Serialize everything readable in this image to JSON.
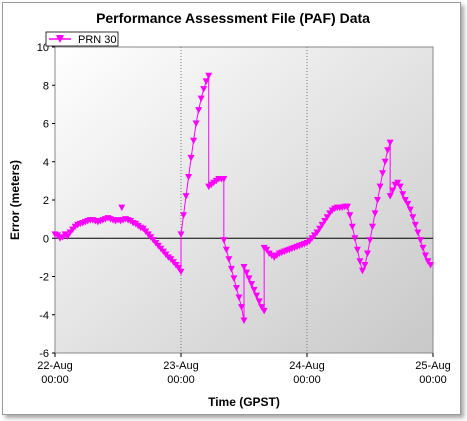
{
  "chart_data": {
    "type": "scatter",
    "title": "Performance Assessment File (PAF) Data",
    "xlabel": "Time (GPST)",
    "ylabel": "Error (meters)",
    "ylim": [
      -6,
      10
    ],
    "yticks": [
      -6,
      -4,
      -2,
      0,
      2,
      4,
      6,
      8,
      10
    ],
    "xlim": [
      0,
      3
    ],
    "xticks": [
      {
        "value": 0,
        "line1": "22-Aug",
        "line2": "00:00"
      },
      {
        "value": 1,
        "line1": "23-Aug",
        "line2": "00:00"
      },
      {
        "value": 2,
        "line1": "24-Aug",
        "line2": "00:00"
      },
      {
        "value": 3,
        "line1": "25-Aug",
        "line2": "00:00"
      }
    ],
    "x_unit": "days since 22-Aug 00:00",
    "legend_position": "top-left",
    "grid": {
      "x": "dotted",
      "y": "none"
    },
    "zero_line": true,
    "series": [
      {
        "name": "PRN 30",
        "color": "#ff00ff",
        "marker": "triangle-down",
        "segments": [
          [
            [
              0.0,
              0.2
            ],
            [
              0.02,
              0.15
            ],
            [
              0.04,
              0.0
            ],
            [
              0.06,
              0.05
            ],
            [
              0.08,
              0.2
            ],
            [
              0.1,
              0.1
            ],
            [
              0.12,
              0.3
            ],
            [
              0.14,
              0.45
            ],
            [
              0.16,
              0.6
            ],
            [
              0.18,
              0.7
            ],
            [
              0.2,
              0.75
            ],
            [
              0.22,
              0.8
            ],
            [
              0.24,
              0.85
            ],
            [
              0.26,
              0.9
            ],
            [
              0.28,
              0.95
            ],
            [
              0.3,
              0.95
            ],
            [
              0.32,
              0.9
            ],
            [
              0.34,
              0.85
            ],
            [
              0.36,
              0.9
            ],
            [
              0.38,
              0.95
            ],
            [
              0.4,
              1.0
            ],
            [
              0.42,
              1.05
            ],
            [
              0.44,
              1.0
            ],
            [
              0.46,
              0.95
            ],
            [
              0.48,
              0.9
            ],
            [
              0.5,
              0.95
            ],
            [
              0.52,
              0.9
            ],
            [
              0.54,
              0.95
            ],
            [
              0.56,
              1.0
            ],
            [
              0.58,
              0.95
            ],
            [
              0.6,
              0.9
            ],
            [
              0.62,
              0.8
            ],
            [
              0.64,
              0.75
            ],
            [
              0.66,
              0.65
            ],
            [
              0.68,
              0.55
            ],
            [
              0.7,
              0.5
            ],
            [
              0.72,
              0.35
            ],
            [
              0.74,
              0.2
            ],
            [
              0.76,
              0.05
            ],
            [
              0.78,
              -0.1
            ],
            [
              0.8,
              -0.25
            ],
            [
              0.82,
              -0.4
            ],
            [
              0.84,
              -0.55
            ],
            [
              0.86,
              -0.7
            ],
            [
              0.88,
              -0.85
            ],
            [
              0.9,
              -1.0
            ],
            [
              0.92,
              -1.1
            ],
            [
              0.94,
              -1.25
            ],
            [
              0.96,
              -1.4
            ],
            [
              0.98,
              -1.55
            ],
            [
              1.0,
              -1.75
            ]
          ],
          [
            [
              1.0,
              0.2
            ],
            [
              1.02,
              1.2
            ],
            [
              1.04,
              2.2
            ],
            [
              1.06,
              3.2
            ],
            [
              1.08,
              4.2
            ],
            [
              1.1,
              5.1
            ],
            [
              1.12,
              6.0
            ],
            [
              1.14,
              6.7
            ],
            [
              1.16,
              7.3
            ],
            [
              1.18,
              7.8
            ],
            [
              1.2,
              8.2
            ],
            [
              1.22,
              8.5
            ]
          ],
          [
            [
              1.22,
              2.7
            ],
            [
              1.24,
              2.8
            ],
            [
              1.26,
              2.9
            ],
            [
              1.28,
              3.0
            ],
            [
              1.3,
              3.1
            ],
            [
              1.32,
              3.1
            ],
            [
              1.34,
              3.1
            ]
          ],
          [
            [
              1.34,
              -0.1
            ],
            [
              1.36,
              -0.6
            ],
            [
              1.38,
              -1.1
            ],
            [
              1.4,
              -1.6
            ],
            [
              1.42,
              -2.1
            ],
            [
              1.44,
              -2.6
            ],
            [
              1.46,
              -3.1
            ],
            [
              1.48,
              -3.6
            ],
            [
              1.5,
              -4.3
            ]
          ],
          [
            [
              1.5,
              -1.5
            ],
            [
              1.52,
              -1.8
            ],
            [
              1.54,
              -2.1
            ],
            [
              1.56,
              -2.4
            ],
            [
              1.58,
              -2.7
            ],
            [
              1.6,
              -3.0
            ],
            [
              1.62,
              -3.3
            ],
            [
              1.64,
              -3.6
            ],
            [
              1.66,
              -3.8
            ]
          ],
          [
            [
              1.66,
              -0.5
            ],
            [
              1.68,
              -0.6
            ],
            [
              1.7,
              -0.8
            ],
            [
              1.72,
              -0.9
            ],
            [
              1.74,
              -1.0
            ],
            [
              1.76,
              -0.9
            ],
            [
              1.78,
              -0.8
            ],
            [
              1.8,
              -0.75
            ],
            [
              1.82,
              -0.7
            ],
            [
              1.84,
              -0.65
            ],
            [
              1.86,
              -0.6
            ],
            [
              1.88,
              -0.55
            ],
            [
              1.9,
              -0.5
            ],
            [
              1.92,
              -0.45
            ],
            [
              1.94,
              -0.4
            ],
            [
              1.96,
              -0.35
            ],
            [
              1.98,
              -0.3
            ],
            [
              2.0,
              -0.25
            ],
            [
              2.02,
              -0.15
            ],
            [
              2.04,
              0.0
            ],
            [
              2.06,
              0.15
            ],
            [
              2.08,
              0.3
            ],
            [
              2.1,
              0.5
            ],
            [
              2.12,
              0.7
            ],
            [
              2.14,
              0.9
            ],
            [
              2.16,
              1.1
            ],
            [
              2.18,
              1.3
            ],
            [
              2.2,
              1.45
            ],
            [
              2.22,
              1.55
            ],
            [
              2.24,
              1.6
            ],
            [
              2.26,
              1.6
            ],
            [
              2.28,
              1.6
            ],
            [
              2.3,
              1.65
            ],
            [
              2.32,
              1.65
            ]
          ],
          [
            [
              2.32,
              1.65
            ],
            [
              2.34,
              1.2
            ],
            [
              2.36,
              0.6
            ],
            [
              2.38,
              0.0
            ],
            [
              2.4,
              -0.6
            ],
            [
              2.42,
              -1.2
            ],
            [
              2.44,
              -1.7
            ],
            [
              2.46,
              -1.4
            ],
            [
              2.48,
              -0.8
            ],
            [
              2.5,
              -0.1
            ],
            [
              2.52,
              0.6
            ],
            [
              2.54,
              1.3
            ],
            [
              2.56,
              2.0
            ],
            [
              2.58,
              2.7
            ],
            [
              2.6,
              3.4
            ],
            [
              2.62,
              4.0
            ],
            [
              2.64,
              4.6
            ],
            [
              2.66,
              5.0
            ]
          ],
          [
            [
              2.66,
              2.2
            ],
            [
              2.68,
              2.5
            ],
            [
              2.7,
              2.8
            ],
            [
              2.72,
              2.9
            ],
            [
              2.74,
              2.7
            ],
            [
              2.76,
              2.3
            ],
            [
              2.78,
              2.0
            ],
            [
              2.8,
              1.8
            ],
            [
              2.82,
              1.5
            ],
            [
              2.84,
              1.1
            ],
            [
              2.86,
              0.7
            ],
            [
              2.88,
              0.3
            ],
            [
              2.9,
              -0.1
            ],
            [
              2.92,
              -0.5
            ],
            [
              2.94,
              -0.9
            ],
            [
              2.96,
              -1.2
            ],
            [
              2.98,
              -1.4
            ]
          ]
        ],
        "spikes": [
          [
            0.53,
            1.6
          ]
        ]
      }
    ]
  }
}
